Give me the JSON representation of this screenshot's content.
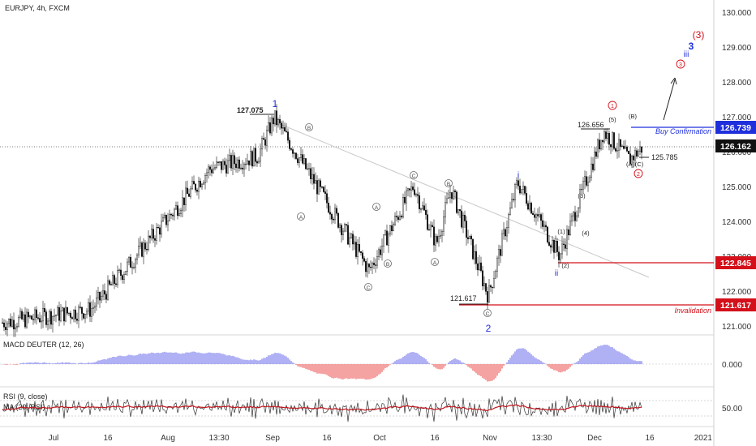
{
  "header": {
    "symbol_label": "EURJPY, 4h, FXCM"
  },
  "panes": {
    "macd_label": "MACD DEUTER (12, 26)",
    "macd_zero_label": "0.000",
    "rsi_label": "RSI (9, close)",
    "rsi_ma_label": "MA (20, RSI)",
    "rsi_level_label": "50.00"
  },
  "price_axis": {
    "ticks": [
      "130.000",
      "129.000",
      "128.000",
      "127.000",
      "126.000",
      "125.000",
      "124.000",
      "123.000",
      "122.000",
      "121.000"
    ]
  },
  "time_axis": {
    "labels": [
      "Jul",
      "16",
      "Aug",
      "13:30",
      "Sep",
      "16",
      "Oct",
      "16",
      "Nov",
      "13:30",
      "Dec",
      "16",
      "2021"
    ]
  },
  "price_tags": [
    {
      "label": "126.739",
      "color": "#1f2fdc"
    },
    {
      "label": "126.162",
      "color": "#111111"
    },
    {
      "label": "122.845",
      "color": "#d4101a"
    },
    {
      "label": "121.617",
      "color": "#d4101a"
    }
  ],
  "annotations": {
    "buy_confirmation": "Buy Confirmation",
    "invalidation": "Invalidation",
    "high_price": "127.075",
    "low_price": "121.617",
    "level_126656": "126.656",
    "level_125785": "125.785"
  },
  "wave_labels": {
    "wave1": "1",
    "wave2": "2",
    "wave3": "3",
    "wave3_paren": "(3)",
    "wave_i": "i",
    "wave_ii": "ii",
    "wave_iii": "iii",
    "sub1": "(1)",
    "sub2": "(2)",
    "sub3": "(3)",
    "sub4": "(4)",
    "sub5": "(5)",
    "subA": "(A)",
    "subB": "(B)",
    "subC": "(C)",
    "circ1": "1",
    "circ2": "2",
    "circ3": "3",
    "circA": "A",
    "circB": "B",
    "circC": "C"
  },
  "colors": {
    "red": "#d4101a",
    "blue": "#1f2fdc",
    "macd_pos": "#8f8ff0",
    "macd_neg": "#f07a7a",
    "rsi_ma": "#c0141c"
  },
  "chart_data": {
    "type": "candlestick",
    "symbol": "EURJPY",
    "timeframe": "4h",
    "ylim": [
      120.6,
      130.3
    ],
    "price_path": [
      [
        "Jul",
        120.8
      ],
      [
        "16",
        121.2
      ],
      [
        "Aug",
        125.5
      ],
      [
        "13:30",
        125.9
      ],
      [
        "Sep",
        127.075
      ],
      [
        "16",
        124.2
      ],
      [
        "Oct",
        122.4
      ],
      [
        "Oct",
        125.0
      ],
      [
        "16",
        123.2
      ],
      [
        "16",
        124.9
      ],
      [
        "Nov",
        121.617
      ],
      [
        "13:30",
        125.1
      ],
      [
        "13:30",
        122.845
      ],
      [
        "Dec",
        126.656
      ],
      [
        "Dec",
        125.785
      ],
      [
        "16",
        126.162
      ]
    ],
    "levels": [
      {
        "label": "Buy Confirmation",
        "value": 126.739
      },
      {
        "label": "Invalidation",
        "value": 121.617
      },
      {
        "label": "",
        "value": 122.845
      },
      {
        "label": "",
        "value": 126.162
      }
    ],
    "indicators": [
      "MACD DEUTER (12, 26)",
      "RSI (9, close)",
      "MA (20, RSI)"
    ]
  }
}
